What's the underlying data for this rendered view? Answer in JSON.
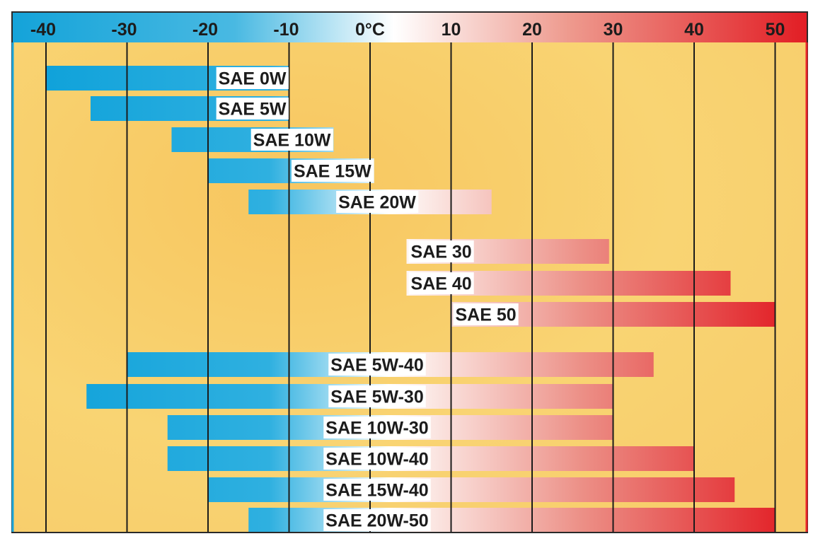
{
  "chart_data": {
    "type": "bar",
    "orientation": "horizontal-range",
    "x_unit_label": "0°C",
    "x_range": [
      -45,
      53.5
    ],
    "x_ticks": [
      {
        "value": -40,
        "label": "-40"
      },
      {
        "value": -30,
        "label": "-30"
      },
      {
        "value": -20,
        "label": "-20"
      },
      {
        "value": -10,
        "label": "-10"
      },
      {
        "value": 0,
        "label": "0°C"
      },
      {
        "value": 10,
        "label": "10"
      },
      {
        "value": 20,
        "label": "20"
      },
      {
        "value": 30,
        "label": "30"
      },
      {
        "value": 40,
        "label": "40"
      },
      {
        "value": 50,
        "label": "50"
      }
    ],
    "bars": [
      {
        "label": "SAE 0W",
        "from": -40,
        "to": -10
      },
      {
        "label": "SAE 5W",
        "from": -34.5,
        "to": -10
      },
      {
        "label": "SAE 10W",
        "from": -24.5,
        "to": -4.5
      },
      {
        "label": "SAE 15W",
        "from": -20,
        "to": 0.5
      },
      {
        "label": "SAE 20W",
        "from": -15,
        "to": 15
      },
      {
        "label": "SAE 30",
        "from": 4.5,
        "to": 29.5
      },
      {
        "label": "SAE 40",
        "from": 4.5,
        "to": 44.5
      },
      {
        "label": "SAE 50",
        "from": 10,
        "to": 50
      },
      {
        "label": "SAE 5W-40",
        "from": -30,
        "to": 35
      },
      {
        "label": "SAE 5W-30",
        "from": -35,
        "to": 30
      },
      {
        "label": "SAE 10W-30",
        "from": -25,
        "to": 30
      },
      {
        "label": "SAE 10W-40",
        "from": -25,
        "to": 40
      },
      {
        "label": "SAE 15W-40",
        "from": -20,
        "to": 45
      },
      {
        "label": "SAE 20W-50",
        "from": -15,
        "to": 50
      }
    ],
    "grid": true,
    "legend": "none",
    "colors": {
      "cold": "#1aa6dc",
      "neutral": "#ffffff",
      "hot": "#e8242a",
      "background": "#f8cf6a",
      "gridline": "#1b1b1b"
    }
  }
}
